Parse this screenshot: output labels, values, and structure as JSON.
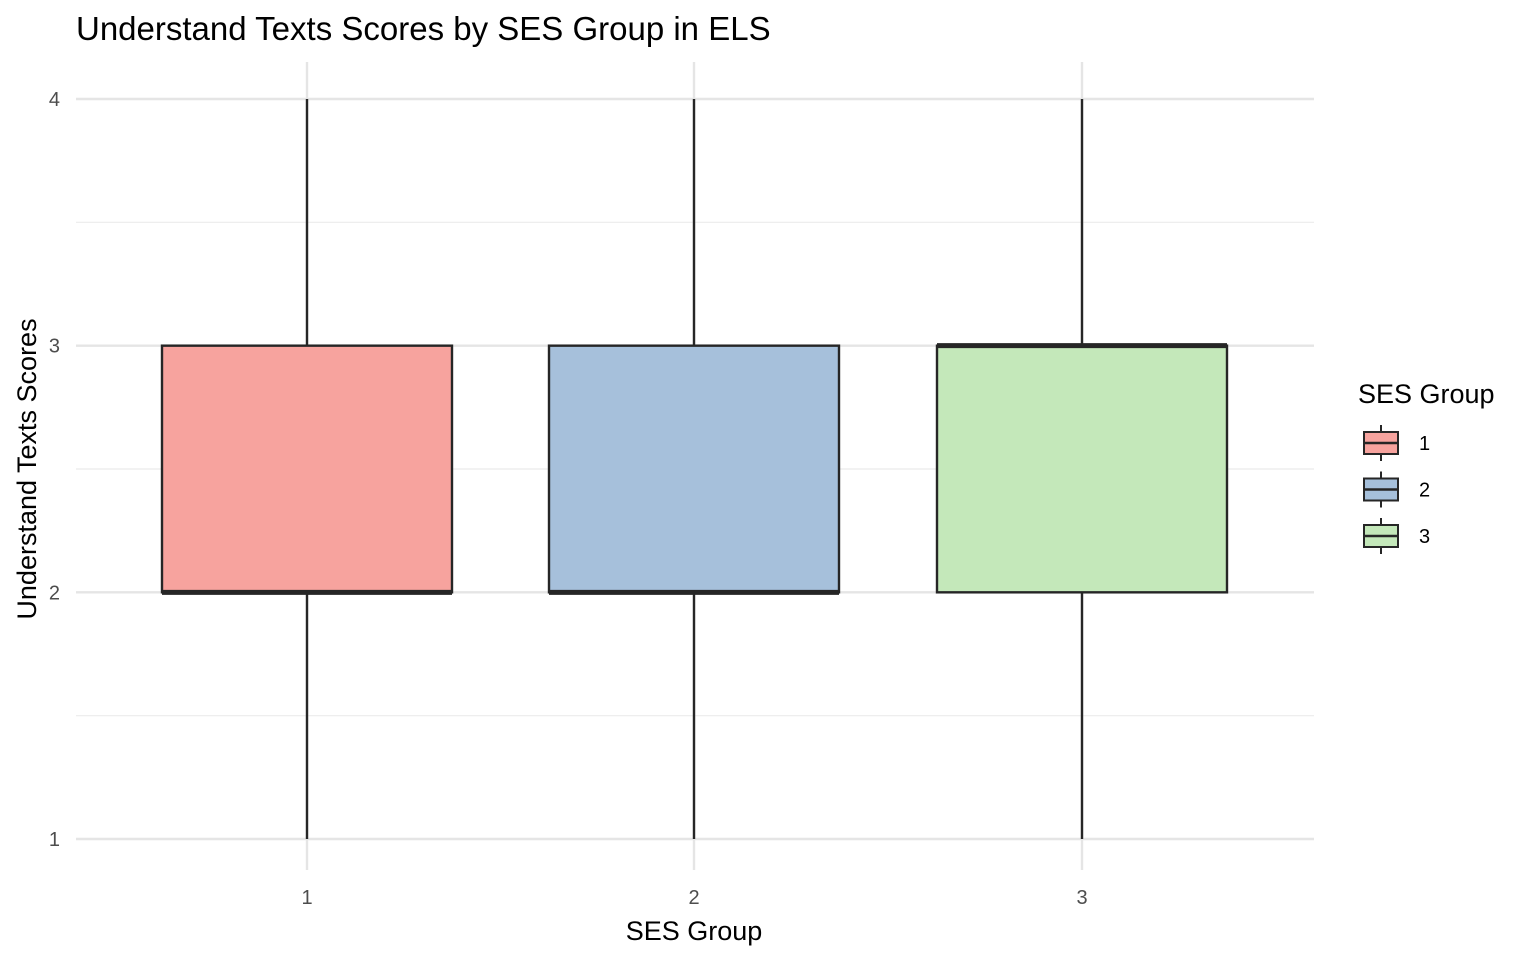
{
  "chart_data": {
    "type": "box",
    "title": "Understand Texts Scores by SES Group in ELS",
    "xlabel": "SES Group",
    "ylabel": "Understand Texts Scores",
    "categories": [
      "1",
      "2",
      "3"
    ],
    "yticks": [
      "1",
      "2",
      "3",
      "4"
    ],
    "ylim": [
      0.9,
      4.15
    ],
    "grid": true,
    "legend": {
      "title": "SES Group",
      "position": "right",
      "entries": [
        "1",
        "2",
        "3"
      ]
    },
    "series": [
      {
        "category": "1",
        "min": 1,
        "q1": 2,
        "median": 2,
        "q3": 3,
        "max": 4,
        "color": "#F7A39E"
      },
      {
        "category": "2",
        "min": 1,
        "q1": 2,
        "median": 2,
        "q3": 3,
        "max": 4,
        "color": "#A6C0DB"
      },
      {
        "category": "3",
        "min": 1,
        "q1": 2,
        "median": 3,
        "q3": 3,
        "max": 4,
        "color": "#C4E8BA"
      }
    ]
  }
}
